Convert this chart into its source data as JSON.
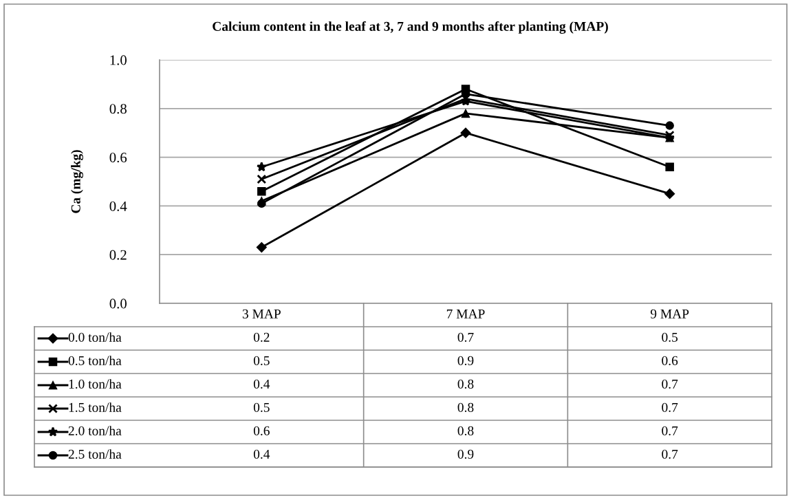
{
  "chart_data": {
    "type": "line",
    "title": "Calcium content in the leaf at 3, 7 and 9 months after planting (MAP)",
    "ylabel": "Ca (mg/kg)",
    "categories": [
      "3 MAP",
      "7 MAP",
      "9 MAP"
    ],
    "ylim": [
      0,
      1.0
    ],
    "yticks": [
      {
        "value": 0,
        "label": "0.0"
      },
      0.2,
      0.4,
      0.6,
      0.8,
      {
        "value": 1.0,
        "label": "1.0"
      }
    ],
    "grid": "y",
    "legend": "bottom",
    "line_style": "solid",
    "series": [
      {
        "name": "0.0 ton/ha",
        "color": "#000000",
        "marker": "diamond",
        "values": [
          0.23,
          0.7,
          0.45
        ],
        "value_labels": [
          "0.2",
          "0.7",
          "0.5"
        ]
      },
      {
        "name": "0.5 ton/ha",
        "color": "#000000",
        "marker": "square",
        "values": [
          0.46,
          0.88,
          0.56
        ],
        "value_labels": [
          "0.5",
          "0.9",
          "0.6"
        ]
      },
      {
        "name": "1.0 ton/ha",
        "color": "#000000",
        "marker": "triangle",
        "values": [
          0.42,
          0.78,
          0.68
        ],
        "value_labels": [
          "0.4",
          "0.8",
          "0.7"
        ]
      },
      {
        "name": "1.5 ton/ha",
        "color": "#000000",
        "marker": "cross",
        "values": [
          0.51,
          0.84,
          0.69
        ],
        "value_labels": [
          "0.5",
          "0.8",
          "0.7"
        ]
      },
      {
        "name": "2.0 ton/ha",
        "color": "#000000",
        "marker": "star",
        "values": [
          0.56,
          0.83,
          0.68
        ],
        "value_labels": [
          "0.6",
          "0.8",
          "0.7"
        ]
      },
      {
        "name": "2.5 ton/ha",
        "color": "#000000",
        "marker": "circle",
        "values": [
          0.41,
          0.86,
          0.73
        ],
        "value_labels": [
          "0.4",
          "0.9",
          "0.7"
        ]
      }
    ]
  }
}
